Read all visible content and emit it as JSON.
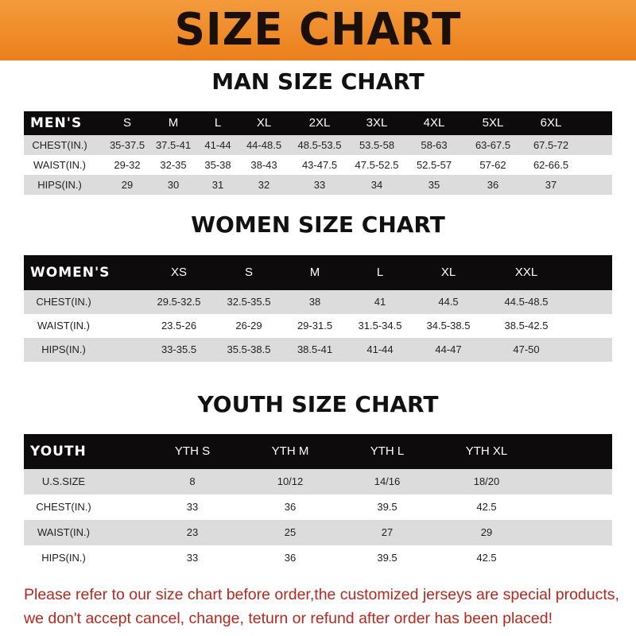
{
  "banner": {
    "title": "SIZE CHART",
    "color": "#ef8a28"
  },
  "men": {
    "title": "MAN SIZE CHART",
    "header": [
      "MEN'S",
      "S",
      "M",
      "L",
      "XL",
      "2XL",
      "3XL",
      "4XL",
      "5XL",
      "6XL"
    ],
    "rows": [
      [
        "CHEST(IN.)",
        "35-37.5",
        "37.5-41",
        "41-44",
        "44-48.5",
        "48.5-53.5",
        "53.5-58",
        "58-63",
        "63-67.5",
        "67.5-72"
      ],
      [
        "WAIST(IN.)",
        "29-32",
        "32-35",
        "35-38",
        "38-43",
        "43-47.5",
        "47.5-52.5",
        "52.5-57",
        "57-62",
        "62-66.5"
      ],
      [
        "HIPS(IN.)",
        "29",
        "30",
        "31",
        "32",
        "33",
        "34",
        "35",
        "36",
        "37"
      ]
    ]
  },
  "women": {
    "title": "WOMEN SIZE CHART",
    "header": [
      "WOMEN'S",
      "XS",
      "S",
      "M",
      "L",
      "XL",
      "XXL"
    ],
    "rows": [
      [
        "CHEST(IN.)",
        "29.5-32.5",
        "32.5-35.5",
        "38",
        "41",
        "44.5",
        "44.5-48.5"
      ],
      [
        "WAIST(IN.)",
        "23.5-26",
        "26-29",
        "29-31.5",
        "31.5-34.5",
        "34.5-38.5",
        "38.5-42.5"
      ],
      [
        "HIPS(IN.)",
        "33-35.5",
        "35.5-38.5",
        "38.5-41",
        "41-44",
        "44-47",
        "47-50"
      ]
    ]
  },
  "youth": {
    "title": "YOUTH SIZE CHART",
    "header": [
      "YOUTH",
      "YTH S",
      "YTH M",
      "YTH L",
      "YTH XL"
    ],
    "rows": [
      [
        "U.S.SIZE",
        "8",
        "10/12",
        "14/16",
        "18/20"
      ],
      [
        "CHEST(IN.)",
        "33",
        "36",
        "39.5",
        "42.5"
      ],
      [
        "WAIST(IN.)",
        "23",
        "25",
        "27",
        "29"
      ],
      [
        "HIPS(IN.)",
        "33",
        "36",
        "39.5",
        "42.5"
      ]
    ]
  },
  "footer": {
    "line1": "Please refer to our size chart before order,the customized jerseys are special products,",
    "line2": "we don't accept cancel, change, teturn or refund after order has been placed!",
    "color": "#b5281f"
  }
}
